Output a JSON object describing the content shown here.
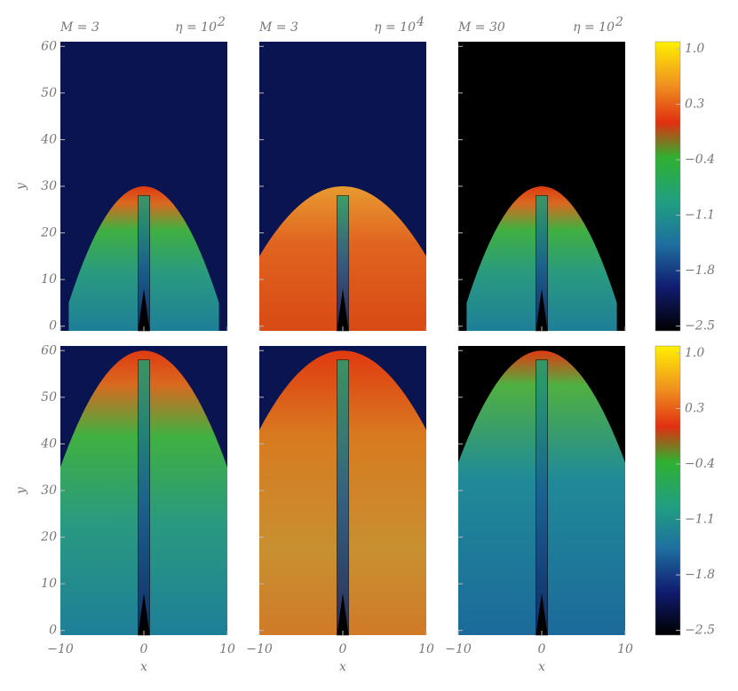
{
  "columns": [
    {
      "title": {
        "m": "M = 3",
        "eta": "η = 10",
        "exp": "2"
      }
    },
    {
      "title": {
        "m": "M = 3",
        "eta": "η = 10",
        "exp": "4"
      }
    },
    {
      "title": {
        "m": "M = 30",
        "eta": "η = 10",
        "exp": "2"
      }
    }
  ],
  "xlabel": "x",
  "ylabel": "y",
  "xlim": [
    -10,
    10
  ],
  "xticks": [
    {
      "value": -10,
      "label": "−10"
    },
    0,
    10
  ],
  "ylim": [
    -1,
    61
  ],
  "yticks": [
    0,
    10,
    20,
    30,
    40,
    50,
    60
  ],
  "colorbar": {
    "lim": [
      -2.56,
      1.09
    ],
    "ticks": [
      {
        "value": 1.0,
        "label": "1.0"
      },
      0.3,
      {
        "value": -0.4,
        "label": "−0.4"
      },
      {
        "value": -1.1,
        "label": "−1.1"
      },
      {
        "value": -1.8,
        "label": "−1.8"
      },
      {
        "value": -2.5,
        "label": "−2.5"
      }
    ]
  }
}
